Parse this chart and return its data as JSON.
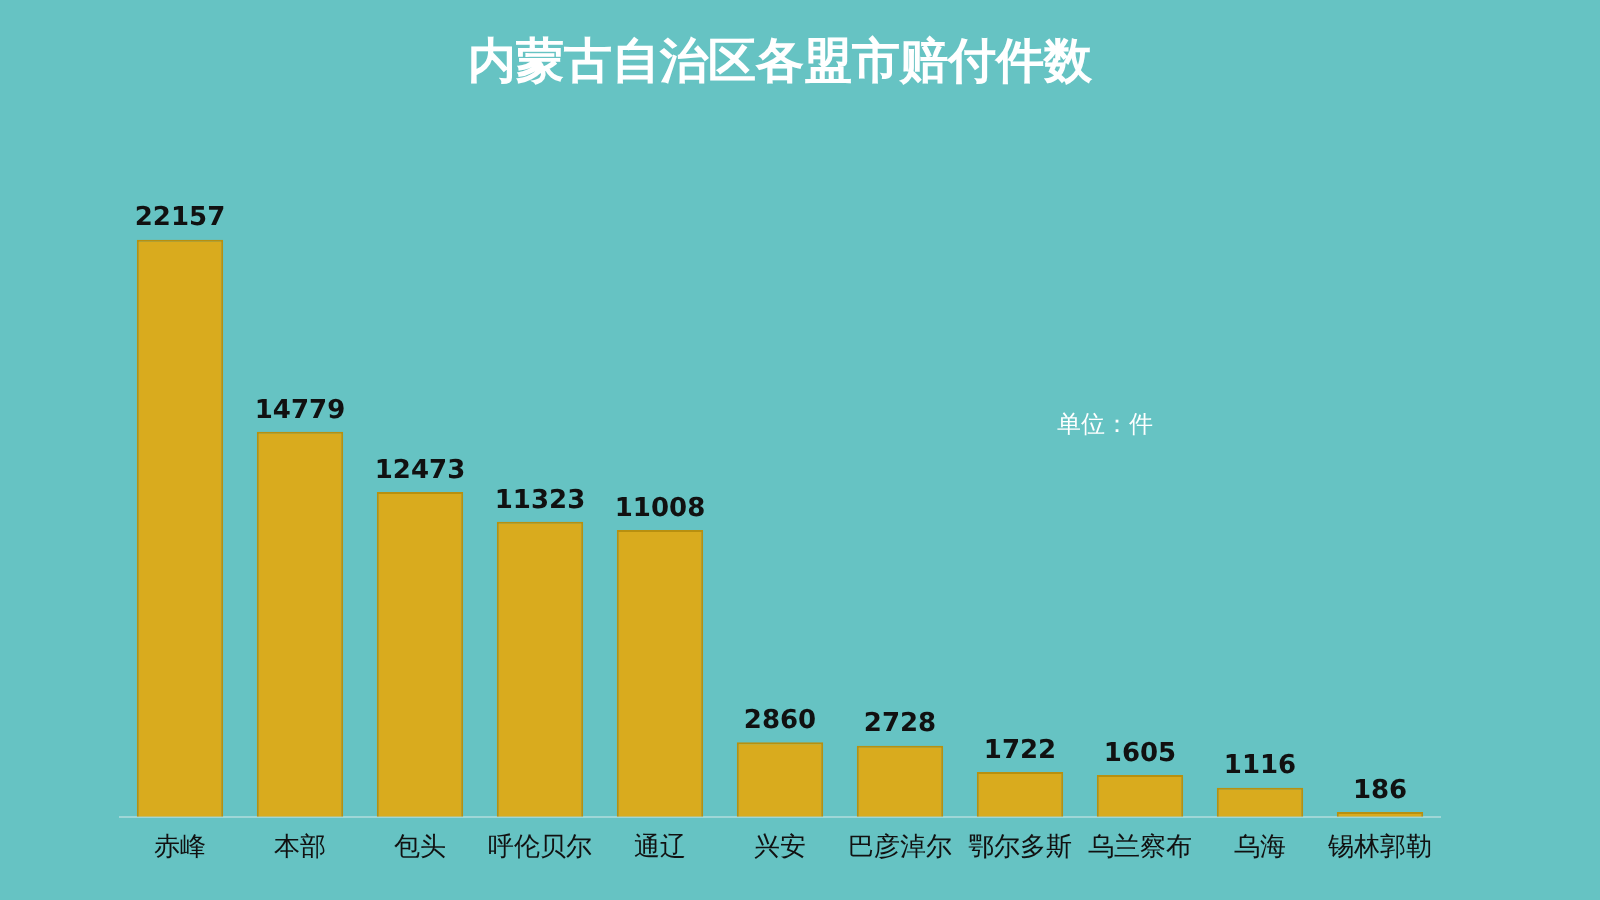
{
  "chart_data": {
    "type": "bar",
    "title": "内蒙古自治区各盟市赔付件数",
    "categories": [
      "赤峰",
      "本部",
      "包头",
      "呼伦贝尔",
      "通辽",
      "兴安",
      "巴彦淖尔",
      "鄂尔多斯",
      "乌兰察布",
      "乌海",
      "锡林郭勒"
    ],
    "values": [
      22157,
      14779,
      12473,
      11323,
      11008,
      2860,
      2728,
      1722,
      1605,
      1116,
      186
    ],
    "color": "#d9ab1e",
    "data_labels": true,
    "grid": false,
    "legend": false,
    "tick_labels": "x",
    "annotations": [
      "单位：件"
    ]
  }
}
